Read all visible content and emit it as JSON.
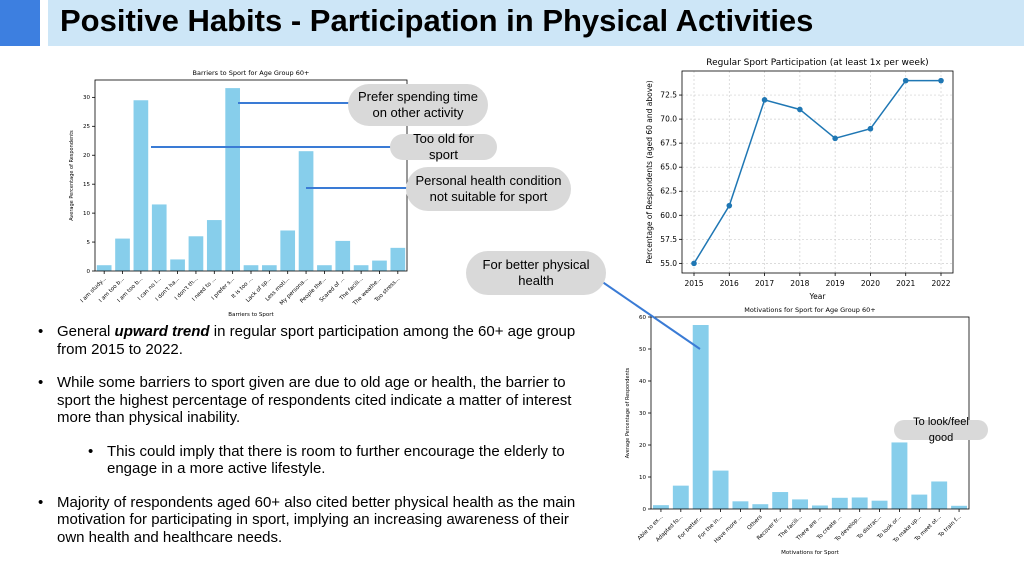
{
  "title": "Positive Habits - Participation in Physical Activities",
  "callouts": {
    "prefer": [
      "Prefer spending time",
      "on other activity"
    ],
    "too_old": [
      "Too old for sport"
    ],
    "health": [
      "Personal health condition",
      "not suitable for sport"
    ],
    "better_health": [
      "For better physical",
      "health"
    ],
    "look_feel": [
      "To look/feel good"
    ]
  },
  "bullets": [
    {
      "pre": "General ",
      "emph": "upward trend",
      "post": " in regular sport participation among the 60+ age group from 2015 to 2022."
    },
    {
      "text": "While some barriers to sport given are due to old age or health, the barrier to sport the highest percentage of respondents cited indicate a matter of interest more than physical inability."
    },
    {
      "text": "This could imply that there is room to further encourage the elderly to engage in a more active lifestyle."
    },
    {
      "text": "Majority of respondents aged 60+ also cited better physical health as the main motivation for participating in sport, implying an increasing awareness of their own health and healthcare needs."
    }
  ],
  "bullet_glyph": "•",
  "colors": {
    "bar": "#87ceeb",
    "line": "#1f77b4",
    "callout_line": "#3a7bd5",
    "title_band": "#cde6f7",
    "accent": "#3d7fe0"
  },
  "chart_data": [
    {
      "type": "bar",
      "title": "Barriers to Sport for Age Group 60+",
      "xlabel": "Barriers to Sport",
      "ylabel": "Average Percentage of Respondents",
      "categories": [
        "I am study...",
        "I am too b...",
        "I am too b...",
        "I can no l...",
        "I don't ha...",
        "I don't th...",
        "I need to ...",
        "I prefer s...",
        "It is too ...",
        "Lack of sp...",
        "Less moti...",
        "My persona...",
        "People the...",
        "Scared of ...",
        "The facili...",
        "The weathe...",
        "Too stress..."
      ],
      "values": [
        1,
        5.6,
        29.5,
        11.5,
        2,
        6,
        8.8,
        31.6,
        1,
        1,
        7,
        20.7,
        1,
        5.2,
        1,
        1.8,
        4
      ],
      "ylim": [
        0,
        33
      ],
      "yticks": [
        0,
        5,
        10,
        15,
        20,
        25,
        30
      ]
    },
    {
      "type": "line",
      "title": "Regular Sport Participation (at least 1x per week)",
      "xlabel": "Year",
      "ylabel": "Percentage of Respondents (aged 60 and above)",
      "x": [
        2015,
        2016,
        2017,
        2018,
        2019,
        2020,
        2021,
        2022
      ],
      "values": [
        55,
        61,
        72,
        71,
        68,
        69,
        74,
        74
      ],
      "ylim": [
        54,
        75
      ],
      "yticks": [
        "55.0",
        "57.5",
        "60.0",
        "62.5",
        "65.0",
        "67.5",
        "70.0",
        "72.5"
      ],
      "grid": true
    },
    {
      "type": "bar",
      "title": "Motivations for Sport for Age Group 60+",
      "xlabel": "Motivations for Sport",
      "ylabel": "Average Percentage of Respondents",
      "categories": [
        "Able to ex...",
        "Adapted fo...",
        "For better...",
        "For the in...",
        "Have more ...",
        "Others",
        "Recover fr...",
        "The facili...",
        "There are ...",
        "To create ...",
        "To develop...",
        "To distrac...",
        "To look or...",
        "To make up...",
        "To meet ot...",
        "To train f..."
      ],
      "values": [
        1.2,
        7.3,
        57.5,
        12,
        2.4,
        1.5,
        5.3,
        3,
        1.1,
        3.5,
        3.6,
        2.6,
        20.8,
        4.5,
        8.6,
        1
      ],
      "ylim": [
        0,
        60
      ],
      "yticks": [
        0,
        10,
        20,
        30,
        40,
        50,
        60
      ]
    }
  ]
}
